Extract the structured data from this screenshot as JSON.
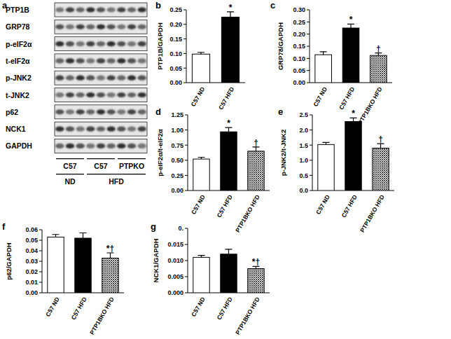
{
  "blot": {
    "title": "a",
    "rows": [
      "PTP1B",
      "GRP78",
      "p-eIF2α",
      "t-eIF2α",
      "p-JNK2",
      "t-JNK2",
      "p62",
      "NCK1",
      "GAPDH"
    ],
    "strains": [
      "C57",
      "C57",
      "PTPKO"
    ],
    "diets": [
      "ND",
      "HFD"
    ]
  },
  "chart_data": [
    {
      "type": "bar",
      "title": "b",
      "y_label": "PTP1B/GAPDH",
      "categories": [
        "C57 ND",
        "C57 HFD"
      ],
      "values": [
        0.098,
        0.225
      ],
      "errors": [
        0.006,
        0.018
      ],
      "colors": [
        "#ffffff",
        "#000000"
      ],
      "annotations": [
        null,
        "*"
      ],
      "ylim": [
        0,
        0.25
      ],
      "yticks": [
        {
          "value": 0,
          "label": "0.00"
        },
        {
          "value": 0.05,
          "label": "0.05"
        },
        {
          "value": 0.1,
          "label": "0.10"
        },
        {
          "value": 0.15,
          "label": "0.15"
        },
        {
          "value": 0.2,
          "label": "0.20"
        },
        {
          "value": 0.25,
          "label": "0.25"
        }
      ]
    },
    {
      "type": "bar",
      "title": "c",
      "y_label": "GRP78/GAPDH",
      "categories": [
        "C57 ND",
        "C57 HFD",
        "PTP1BKO HFD"
      ],
      "values": [
        0.115,
        0.225,
        0.112
      ],
      "errors": [
        0.012,
        0.016,
        0.01
      ],
      "colors": [
        "#ffffff",
        "#000000",
        "#333333"
      ],
      "annotations": [
        null,
        "*",
        "†"
      ],
      "ylim": [
        0,
        0.3
      ],
      "yticks": [
        {
          "value": 0,
          "label": "0.00"
        },
        {
          "value": 0.05,
          "label": "0.05"
        },
        {
          "value": 0.1,
          "label": "0.10"
        },
        {
          "value": 0.15,
          "label": "0.15"
        },
        {
          "value": 0.2,
          "label": "0.20"
        },
        {
          "value": 0.25,
          "label": "0.25"
        },
        {
          "value": 0.3,
          "label": "0.30"
        }
      ]
    },
    {
      "type": "bar",
      "title": "d",
      "y_label": "p-eIF2α/t-eIF2α",
      "categories": [
        "C57 ND",
        "C57 HFD",
        "PTP1BKO HFD"
      ],
      "values": [
        0.52,
        0.97,
        0.65
      ],
      "errors": [
        0.03,
        0.07,
        0.07
      ],
      "colors": [
        "#ffffff",
        "#000000",
        "#333333"
      ],
      "annotations": [
        null,
        "*",
        "†"
      ],
      "ylim": [
        0,
        1.25
      ],
      "yticks": [
        {
          "value": 0,
          "label": "0.00"
        },
        {
          "value": 0.25,
          "label": "0.25"
        },
        {
          "value": 0.5,
          "label": "0.50"
        },
        {
          "value": 0.75,
          "label": "0.75"
        },
        {
          "value": 1,
          "label": "1.00"
        },
        {
          "value": 1.25,
          "label": "1.25"
        }
      ]
    },
    {
      "type": "bar",
      "title": "e",
      "y_label": "p-JNK2/t-JNK2",
      "categories": [
        "C57 ND",
        "C57 HFD",
        "PTP1BKO HFD"
      ],
      "values": [
        1.52,
        2.28,
        1.4
      ],
      "errors": [
        0.07,
        0.12,
        0.15
      ],
      "colors": [
        "#ffffff",
        "#000000",
        "#333333"
      ],
      "annotations": [
        null,
        "*",
        "†"
      ],
      "ylim": [
        0,
        2.5
      ],
      "yticks": [
        {
          "value": 0,
          "label": "0.0"
        },
        {
          "value": 0.5,
          "label": "0.5"
        },
        {
          "value": 1,
          "label": "1.0"
        },
        {
          "value": 1.5,
          "label": "1.5"
        },
        {
          "value": 2,
          "label": "2.0"
        },
        {
          "value": 2.5,
          "label": "2.5"
        }
      ]
    },
    {
      "type": "bar",
      "title": "f",
      "y_label": "p62/GAPDH",
      "categories": [
        "C57 ND",
        "C57 HFD",
        "PTP1BKO HFD"
      ],
      "values": [
        0.053,
        0.052,
        0.033
      ],
      "errors": [
        0.0025,
        0.005,
        0.005
      ],
      "colors": [
        "#ffffff",
        "#000000",
        "#333333"
      ],
      "annotations": [
        null,
        null,
        "*†"
      ],
      "ylim": [
        0,
        0.06
      ],
      "yticks": [
        {
          "value": 0,
          "label": "0.00"
        },
        {
          "value": 0.01,
          "label": "0.01"
        },
        {
          "value": 0.02,
          "label": "0.02"
        },
        {
          "value": 0.03,
          "label": "0.03"
        },
        {
          "value": 0.04,
          "label": "0.04"
        },
        {
          "value": 0.05,
          "label": "0.05"
        },
        {
          "value": 0.06,
          "label": "0.06"
        }
      ]
    },
    {
      "type": "bar",
      "title": "g",
      "y_label": "NCK1/GAPDH",
      "categories": [
        "C57 ND",
        "C57 HFD",
        "PTP1BKO HFD"
      ],
      "values": [
        0.011,
        0.012,
        0.0075
      ],
      "errors": [
        0.0006,
        0.0015,
        0.0007
      ],
      "colors": [
        "#ffffff",
        "#000000",
        "#333333"
      ],
      "annotations": [
        null,
        null,
        "*†"
      ],
      "ylim": [
        0,
        0.02
      ],
      "yticks": [
        {
          "value": 0,
          "label": "0.000"
        },
        {
          "value": 0.005,
          "label": "0.005"
        },
        {
          "value": 0.01,
          "label": "0.010"
        },
        {
          "value": 0.015,
          "label": "0.015"
        },
        {
          "value": 0.02,
          "label": "0."
        }
      ]
    }
  ]
}
